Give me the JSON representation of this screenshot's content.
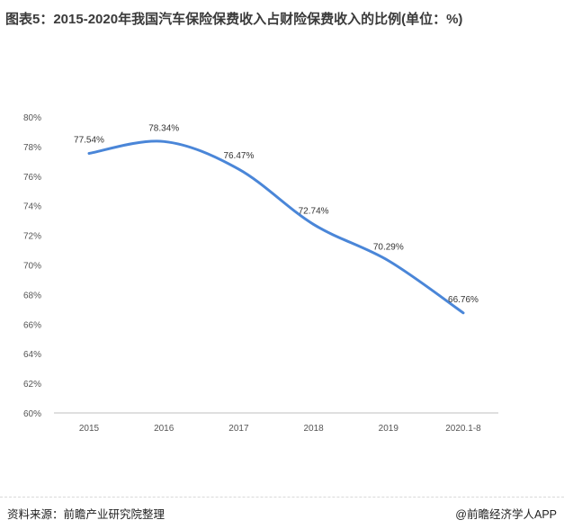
{
  "title": "图表5：2015-2020年我国汽车保险保费收入占财险保费收入的比例(单位：%)",
  "footer": {
    "source": "资料来源：前瞻产业研究院整理",
    "brand": "@前瞻经济学人APP"
  },
  "colors": {
    "line": "#4a86d8",
    "axis": "#bfbfbf"
  },
  "chart_data": {
    "type": "line",
    "categories": [
      "2015",
      "2016",
      "2017",
      "2018",
      "2019",
      "2020.1-8"
    ],
    "series": [
      {
        "values": [
          77.54,
          78.34,
          76.47,
          72.74,
          70.29,
          66.76
        ]
      }
    ],
    "data_labels": [
      "77.54%",
      "78.34%",
      "76.47%",
      "72.74%",
      "70.29%",
      "66.76%"
    ],
    "y_ticks": [
      "60%",
      "62%",
      "64%",
      "66%",
      "68%",
      "70%",
      "72%",
      "74%",
      "76%",
      "78%",
      "80%"
    ],
    "ylim": [
      60,
      80
    ],
    "grid": false,
    "smooth": true
  }
}
